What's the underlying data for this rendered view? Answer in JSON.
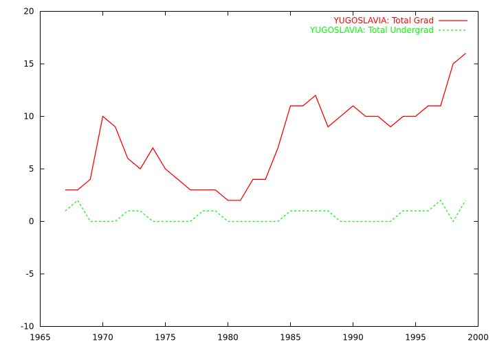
{
  "chart_data": {
    "type": "line",
    "title": "",
    "xlabel": "",
    "ylabel": "",
    "xlim": [
      1965,
      2000
    ],
    "ylim": [
      -10,
      20
    ],
    "xticks": [
      1965,
      1970,
      1975,
      1980,
      1985,
      1990,
      1995,
      2000
    ],
    "yticks": [
      -10,
      -5,
      0,
      5,
      10,
      15,
      20
    ],
    "x_tick_labels": [
      "1965",
      "1970",
      "1975",
      "1980",
      "1985",
      "1990",
      "1995",
      "2000"
    ],
    "y_tick_labels": [
      "-10",
      "-5",
      "0",
      "5",
      "10",
      "15",
      "20"
    ],
    "grid": false,
    "legend_position": "top-right",
    "x": [
      1967,
      1968,
      1969,
      1970,
      1971,
      1972,
      1973,
      1974,
      1975,
      1976,
      1977,
      1978,
      1979,
      1980,
      1981,
      1982,
      1983,
      1984,
      1985,
      1986,
      1987,
      1988,
      1989,
      1990,
      1991,
      1992,
      1993,
      1994,
      1995,
      1996,
      1997,
      1998,
      1999
    ],
    "series": [
      {
        "name": "YUGOSLAVIA: Total Grad",
        "color": "#ff0000",
        "dash": "solid",
        "values": [
          3,
          3,
          4,
          10,
          9,
          6,
          5,
          7,
          5,
          4,
          3,
          3,
          3,
          2,
          2,
          4,
          4,
          7,
          11,
          11,
          12,
          9,
          10,
          11,
          10,
          10,
          9,
          10,
          10,
          11,
          11,
          15,
          16
        ]
      },
      {
        "name": "YUGOSLAVIA: Total Undergrad",
        "color": "#00ff00",
        "dash": "dashed",
        "values": [
          1,
          2,
          0,
          0,
          0,
          1,
          1,
          0,
          0,
          0,
          0,
          1,
          1,
          0,
          0,
          0,
          0,
          0,
          1,
          1,
          1,
          1,
          0,
          0,
          0,
          0,
          0,
          1,
          1,
          1,
          2,
          0,
          2
        ]
      }
    ]
  }
}
